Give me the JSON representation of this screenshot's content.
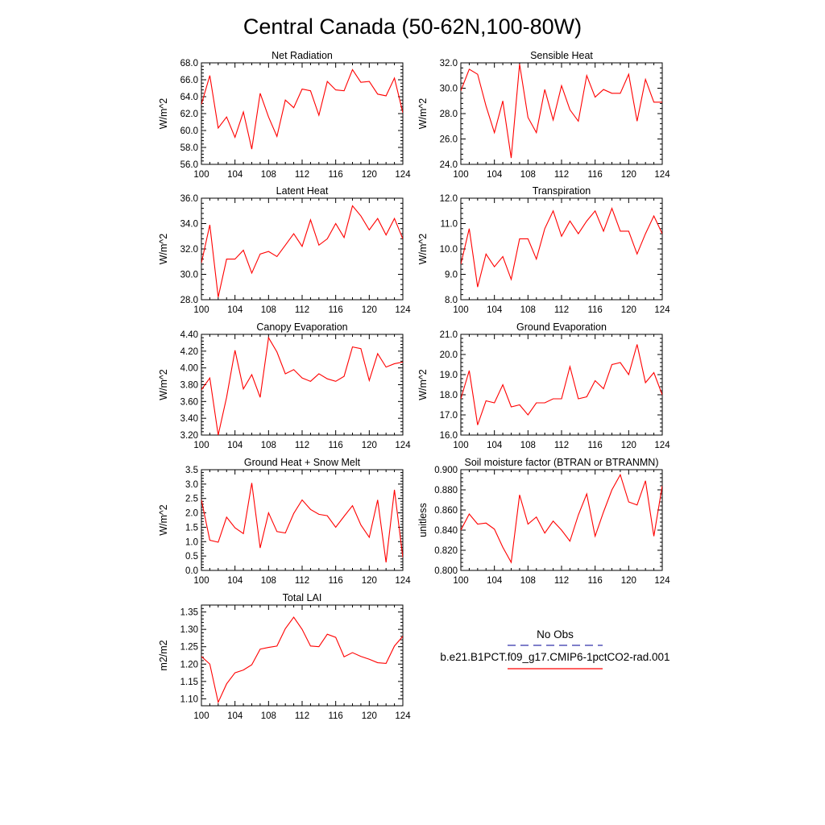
{
  "title": "Central Canada (50-62N,100-80W)",
  "legend": {
    "obs_label": "No Obs",
    "obs_color": "#3333aa",
    "model_label": "b.e21.B1PCT.f09_g17.CMIP6-1pctCO2-rad.001",
    "model_color": "#ff0000"
  },
  "chart_data": [
    {
      "type": "line",
      "title": "Net Radiation",
      "ylabel": "W/m^2",
      "ylim": [
        56.0,
        68.0
      ],
      "yticks": [
        "56.0",
        "58.0",
        "60.0",
        "62.0",
        "64.0",
        "66.0",
        "68.0"
      ],
      "xlim": [
        100,
        124
      ],
      "xticks": [
        "100",
        "104",
        "108",
        "112",
        "116",
        "120",
        "124"
      ],
      "x": [
        100,
        101,
        102,
        103,
        104,
        105,
        106,
        107,
        108,
        109,
        110,
        111,
        112,
        113,
        114,
        115,
        116,
        117,
        118,
        119,
        120,
        121,
        122,
        123,
        124
      ],
      "values": [
        63.1,
        66.5,
        60.3,
        61.6,
        59.2,
        62.2,
        57.8,
        64.4,
        61.6,
        59.3,
        63.6,
        62.7,
        64.9,
        64.7,
        61.8,
        65.8,
        64.8,
        64.7,
        67.2,
        65.7,
        65.8,
        64.3,
        64.1,
        66.2,
        62.1
      ]
    },
    {
      "type": "line",
      "title": "Sensible Heat",
      "ylabel": "W/m^2",
      "ylim": [
        24.0,
        32.0
      ],
      "yticks": [
        "24.0",
        "26.0",
        "28.0",
        "30.0",
        "32.0"
      ],
      "xlim": [
        100,
        124
      ],
      "xticks": [
        "100",
        "104",
        "108",
        "112",
        "116",
        "120",
        "124"
      ],
      "x": [
        100,
        101,
        102,
        103,
        104,
        105,
        106,
        107,
        108,
        109,
        110,
        111,
        112,
        113,
        114,
        115,
        116,
        117,
        118,
        119,
        120,
        121,
        122,
        123,
        124
      ],
      "values": [
        29.8,
        31.5,
        31.1,
        28.6,
        26.5,
        29.0,
        24.5,
        31.9,
        27.7,
        26.5,
        29.9,
        27.5,
        30.2,
        28.3,
        27.4,
        31.0,
        29.3,
        29.9,
        29.6,
        29.6,
        31.1,
        27.4,
        30.7,
        28.9,
        28.9
      ]
    },
    {
      "type": "line",
      "title": "Latent Heat",
      "ylabel": "W/m^2",
      "ylim": [
        28.0,
        36.0
      ],
      "yticks": [
        "28.0",
        "30.0",
        "32.0",
        "34.0",
        "36.0"
      ],
      "xlim": [
        100,
        124
      ],
      "xticks": [
        "100",
        "104",
        "108",
        "112",
        "116",
        "120",
        "124"
      ],
      "x": [
        100,
        101,
        102,
        103,
        104,
        105,
        106,
        107,
        108,
        109,
        110,
        111,
        112,
        113,
        114,
        115,
        116,
        117,
        118,
        119,
        120,
        121,
        122,
        123,
        124
      ],
      "values": [
        30.9,
        33.9,
        28.2,
        31.2,
        31.2,
        31.9,
        30.1,
        31.6,
        31.8,
        31.4,
        32.3,
        33.2,
        32.2,
        34.3,
        32.3,
        32.8,
        34.0,
        32.9,
        35.4,
        34.6,
        33.5,
        34.4,
        33.1,
        34.4,
        32.8
      ]
    },
    {
      "type": "line",
      "title": "Transpiration",
      "ylabel": "W/m^2",
      "ylim": [
        8.0,
        12.0
      ],
      "yticks": [
        "8.0",
        "9.0",
        "10.0",
        "11.0",
        "12.0"
      ],
      "xlim": [
        100,
        124
      ],
      "xticks": [
        "100",
        "104",
        "108",
        "112",
        "116",
        "120",
        "124"
      ],
      "x": [
        100,
        101,
        102,
        103,
        104,
        105,
        106,
        107,
        108,
        109,
        110,
        111,
        112,
        113,
        114,
        115,
        116,
        117,
        118,
        119,
        120,
        121,
        122,
        123,
        124
      ],
      "values": [
        9.4,
        10.8,
        8.5,
        9.8,
        9.3,
        9.7,
        8.8,
        10.4,
        10.4,
        9.6,
        10.8,
        11.5,
        10.5,
        11.1,
        10.6,
        11.1,
        11.5,
        10.7,
        11.6,
        10.7,
        10.7,
        9.8,
        10.6,
        11.3,
        10.6
      ]
    },
    {
      "type": "line",
      "title": "Canopy Evaporation",
      "ylabel": "W/m^2",
      "ylim": [
        3.2,
        4.4
      ],
      "yticks": [
        "3.20",
        "3.40",
        "3.60",
        "3.80",
        "4.00",
        "4.20",
        "4.40"
      ],
      "xlim": [
        100,
        124
      ],
      "xticks": [
        "100",
        "104",
        "108",
        "112",
        "116",
        "120",
        "124"
      ],
      "x": [
        100,
        101,
        102,
        103,
        104,
        105,
        106,
        107,
        108,
        109,
        110,
        111,
        112,
        113,
        114,
        115,
        116,
        117,
        118,
        119,
        120,
        121,
        122,
        123,
        124
      ],
      "values": [
        3.74,
        3.88,
        3.2,
        3.65,
        4.21,
        3.75,
        3.92,
        3.65,
        4.36,
        4.19,
        3.93,
        3.98,
        3.88,
        3.84,
        3.93,
        3.87,
        3.84,
        3.9,
        4.25,
        4.23,
        3.85,
        4.17,
        4.01,
        4.05,
        4.07
      ]
    },
    {
      "type": "line",
      "title": "Ground Evaporation",
      "ylabel": "W/m^2",
      "ylim": [
        16.0,
        21.0
      ],
      "yticks": [
        "16.0",
        "17.0",
        "18.0",
        "19.0",
        "20.0",
        "21.0"
      ],
      "xlim": [
        100,
        124
      ],
      "xticks": [
        "100",
        "104",
        "108",
        "112",
        "116",
        "120",
        "124"
      ],
      "x": [
        100,
        101,
        102,
        103,
        104,
        105,
        106,
        107,
        108,
        109,
        110,
        111,
        112,
        113,
        114,
        115,
        116,
        117,
        118,
        119,
        120,
        121,
        122,
        123,
        124
      ],
      "values": [
        17.8,
        19.2,
        16.5,
        17.7,
        17.6,
        18.5,
        17.4,
        17.5,
        17.0,
        17.6,
        17.6,
        17.8,
        17.8,
        19.4,
        17.8,
        17.9,
        18.7,
        18.3,
        19.5,
        19.6,
        19.0,
        20.5,
        18.6,
        19.1,
        18.0
      ]
    },
    {
      "type": "line",
      "title": "Ground Heat + Snow Melt",
      "ylabel": "W/m^2",
      "ylim": [
        0.0,
        3.5
      ],
      "yticks": [
        "0.0",
        "0.5",
        "1.0",
        "1.5",
        "2.0",
        "2.5",
        "3.0",
        "3.5"
      ],
      "xlim": [
        100,
        124
      ],
      "xticks": [
        "100",
        "104",
        "108",
        "112",
        "116",
        "120",
        "124"
      ],
      "x": [
        100,
        101,
        102,
        103,
        104,
        105,
        106,
        107,
        108,
        109,
        110,
        111,
        112,
        113,
        114,
        115,
        116,
        117,
        118,
        119,
        120,
        121,
        122,
        123,
        124
      ],
      "values": [
        2.45,
        1.05,
        0.98,
        1.85,
        1.48,
        1.28,
        3.04,
        0.78,
        2.0,
        1.35,
        1.3,
        1.98,
        2.45,
        2.12,
        1.95,
        1.9,
        1.5,
        1.88,
        2.25,
        1.58,
        1.15,
        2.45,
        0.28,
        2.8,
        0.45
      ]
    },
    {
      "type": "line",
      "title": "Soil moisture factor (BTRAN or BTRANMN)",
      "ylabel": "unitless",
      "ylim": [
        0.8,
        0.9
      ],
      "yticks": [
        "0.800",
        "0.820",
        "0.840",
        "0.860",
        "0.880",
        "0.900"
      ],
      "xlim": [
        100,
        124
      ],
      "xticks": [
        "100",
        "104",
        "108",
        "112",
        "116",
        "120",
        "124"
      ],
      "x": [
        100,
        101,
        102,
        103,
        104,
        105,
        106,
        107,
        108,
        109,
        110,
        111,
        112,
        113,
        114,
        115,
        116,
        117,
        118,
        119,
        120,
        121,
        122,
        123,
        124
      ],
      "values": [
        0.84,
        0.856,
        0.846,
        0.847,
        0.841,
        0.823,
        0.808,
        0.875,
        0.846,
        0.853,
        0.837,
        0.849,
        0.84,
        0.829,
        0.855,
        0.876,
        0.834,
        0.858,
        0.88,
        0.895,
        0.868,
        0.865,
        0.889,
        0.834,
        0.884
      ]
    },
    {
      "type": "line",
      "title": "Total LAI",
      "ylabel": "m2/m2",
      "ylim": [
        1.08,
        1.37
      ],
      "yticks": [
        "1.10",
        "1.15",
        "1.20",
        "1.25",
        "1.30",
        "1.35"
      ],
      "xlim": [
        100,
        124
      ],
      "xticks": [
        "100",
        "104",
        "108",
        "112",
        "116",
        "120",
        "124"
      ],
      "x": [
        100,
        101,
        102,
        103,
        104,
        105,
        106,
        107,
        108,
        109,
        110,
        111,
        112,
        113,
        114,
        115,
        116,
        117,
        118,
        119,
        120,
        121,
        122,
        123,
        124
      ],
      "values": [
        1.222,
        1.2,
        1.09,
        1.143,
        1.175,
        1.183,
        1.198,
        1.243,
        1.248,
        1.252,
        1.302,
        1.335,
        1.3,
        1.252,
        1.25,
        1.286,
        1.277,
        1.221,
        1.233,
        1.222,
        1.214,
        1.204,
        1.202,
        1.252,
        1.28
      ]
    }
  ]
}
